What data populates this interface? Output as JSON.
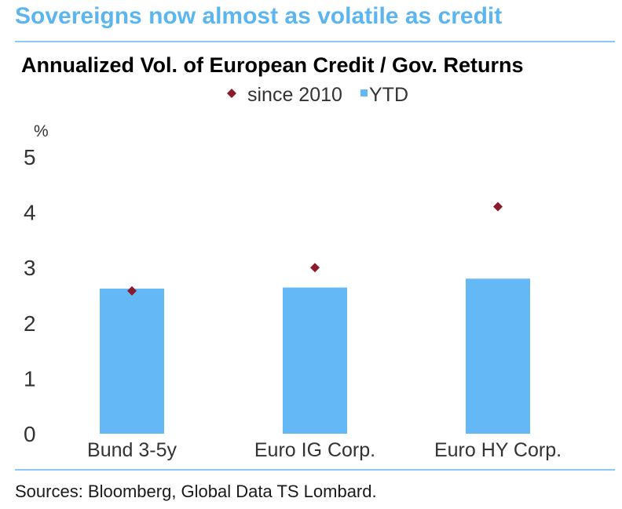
{
  "headline": "Sovereigns now almost as volatile as credit",
  "source": "Sources: Bloomberg, Global Data TS Lombard.",
  "colors": {
    "headline": "#5bb6f0",
    "bar": "#64b8f5",
    "marker": "#8b1a2b",
    "rule": "#8cc8f2"
  },
  "chart_data": {
    "type": "bar",
    "title": "Annualized Vol. of European Credit / Gov. Returns",
    "ylabel": "%",
    "xlabel": "",
    "ylim": [
      0,
      5
    ],
    "yticks": [
      "0",
      "1",
      "2",
      "3",
      "4",
      "5"
    ],
    "grid": false,
    "legend_position": "top-center",
    "categories": [
      "Bund 3-5y",
      "Euro IG Corp.",
      "Euro HY Corp."
    ],
    "series": [
      {
        "name": "since 2010",
        "kind": "marker",
        "values": [
          2.58,
          3.0,
          4.1
        ]
      },
      {
        "name": "YTD",
        "kind": "bar",
        "values": [
          2.62,
          2.64,
          2.8
        ]
      }
    ]
  }
}
